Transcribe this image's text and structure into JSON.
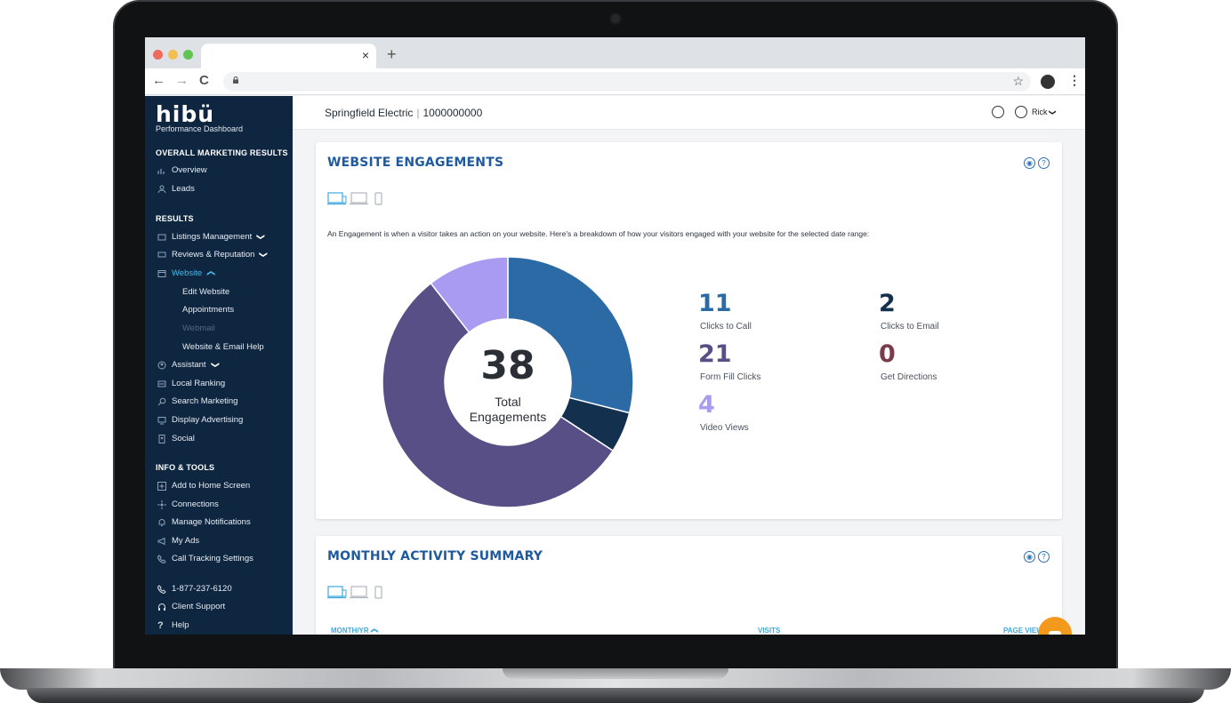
{
  "browser": {
    "tab_close": "×",
    "new_tab": "+",
    "back": "←",
    "forward": "→",
    "reload": "C",
    "bookmark": "☆",
    "menu": "⋮"
  },
  "sidebar": {
    "logo": "hibü",
    "subtitle": "Performance Dashboard",
    "sections": {
      "overall": "OVERALL MARKETING RESULTS",
      "results": "RESULTS",
      "info": "INFO & TOOLS"
    },
    "overall_items": [
      "Overview",
      "Leads"
    ],
    "results_items": [
      "Listings Management",
      "Reviews & Reputation",
      "Website"
    ],
    "website_sub": [
      "Edit Website",
      "Appointments",
      "Webmail",
      "Website & Email Help"
    ],
    "results_items_2": [
      "Assistant",
      "Local Ranking",
      "Search Marketing",
      "Display Advertising",
      "Social"
    ],
    "info_items": [
      "Add to Home Screen",
      "Connections",
      "Manage Notifications",
      "My Ads",
      "Call Tracking Settings"
    ],
    "support_items": [
      "1-877-237-6120",
      "Client Support",
      "Help"
    ],
    "chevron_down": "❯",
    "chevron_up": "❯"
  },
  "header": {
    "company": "Springfield Electric",
    "account": "1000000000",
    "user": "Rick"
  },
  "engagements": {
    "title": "WEBSITE ENGAGEMENTS",
    "description": "An Engagement is when a visitor takes an action on your website. Here's a breakdown of how your visitors engaged with your website for the selected date range:",
    "total": "38",
    "total_label_1": "Total",
    "total_label_2": "Engagements",
    "metrics": [
      {
        "value": "11",
        "label": "Clicks to Call",
        "color": "#2c6aa6"
      },
      {
        "value": "2",
        "label": "Clicks to Email",
        "color": "#14304f"
      },
      {
        "value": "21",
        "label": "Form Fill Clicks",
        "color": "#574f86"
      },
      {
        "value": "0",
        "label": "Get Directions",
        "color": "#7a3c4a"
      },
      {
        "value": "4",
        "label": "Video Views",
        "color": "#a99bf2"
      }
    ]
  },
  "chart_data": {
    "type": "pie",
    "title": "Total Engagements",
    "categories": [
      "Clicks to Call",
      "Clicks to Email",
      "Form Fill Clicks",
      "Get Directions",
      "Video Views"
    ],
    "values": [
      11,
      2,
      21,
      0,
      4
    ],
    "colors": [
      "#2c6aa6",
      "#14304f",
      "#574f86",
      "#7a3c4a",
      "#a99bf2"
    ],
    "total": 38
  },
  "monthly": {
    "title": "MONTHLY ACTIVITY SUMMARY",
    "columns": [
      "MONTH/YR",
      "VISITS",
      "PAGE VIEWS"
    ]
  }
}
